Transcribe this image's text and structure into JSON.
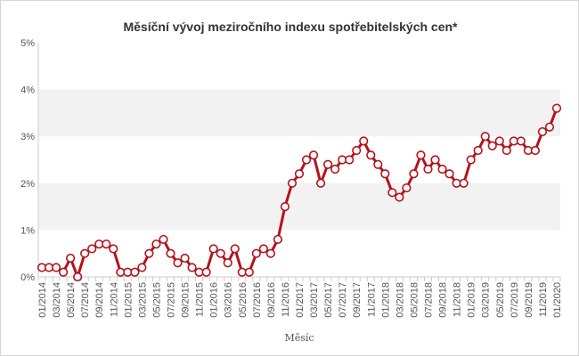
{
  "chart_data": {
    "type": "line",
    "title": "Měsíční vývoj meziročního indexu spotřebitelských cen*",
    "xlabel": "Měsíc",
    "ylabel": "",
    "ylim": [
      0,
      5
    ],
    "y_ticks": [
      "0%",
      "1%",
      "2%",
      "3%",
      "4%",
      "5%"
    ],
    "x_tick_labels": [
      "01/2014",
      "03/2014",
      "05/2014",
      "07/2014",
      "09/2014",
      "11/2014",
      "01/2015",
      "03/2015",
      "05/2015",
      "07/2015",
      "09/2015",
      "11/2015",
      "01/2016",
      "03/2016",
      "05/2016",
      "07/2016",
      "09/2016",
      "11/2016",
      "01/2017",
      "03/2017",
      "05/2017",
      "07/2017",
      "09/2017",
      "11/2017",
      "01/2018",
      "03/2018",
      "05/2018",
      "07/2018",
      "09/2018",
      "11/2018",
      "01/2019",
      "03/2019",
      "05/2019",
      "07/2019",
      "09/2019",
      "11/2019",
      "01/2020"
    ],
    "x": [
      "01/2014",
      "02/2014",
      "03/2014",
      "04/2014",
      "05/2014",
      "06/2014",
      "07/2014",
      "08/2014",
      "09/2014",
      "10/2014",
      "11/2014",
      "12/2014",
      "01/2015",
      "02/2015",
      "03/2015",
      "04/2015",
      "05/2015",
      "06/2015",
      "07/2015",
      "08/2015",
      "09/2015",
      "10/2015",
      "11/2015",
      "12/2015",
      "01/2016",
      "02/2016",
      "03/2016",
      "04/2016",
      "05/2016",
      "06/2016",
      "07/2016",
      "08/2016",
      "09/2016",
      "10/2016",
      "11/2016",
      "12/2016",
      "01/2017",
      "02/2017",
      "03/2017",
      "04/2017",
      "05/2017",
      "06/2017",
      "07/2017",
      "08/2017",
      "09/2017",
      "10/2017",
      "11/2017",
      "12/2017",
      "01/2018",
      "02/2018",
      "03/2018",
      "04/2018",
      "05/2018",
      "06/2018",
      "07/2018",
      "08/2018",
      "09/2018",
      "10/2018",
      "11/2018",
      "12/2018",
      "01/2019",
      "02/2019",
      "03/2019",
      "04/2019",
      "05/2019",
      "06/2019",
      "07/2019",
      "08/2019",
      "09/2019",
      "10/2019",
      "11/2019",
      "12/2019",
      "01/2020"
    ],
    "series": [
      {
        "values": [
          0.2,
          0.2,
          0.2,
          0.1,
          0.4,
          0.0,
          0.5,
          0.6,
          0.7,
          0.7,
          0.6,
          0.1,
          0.1,
          0.1,
          0.2,
          0.5,
          0.7,
          0.8,
          0.5,
          0.3,
          0.4,
          0.2,
          0.1,
          0.1,
          0.6,
          0.5,
          0.3,
          0.6,
          0.1,
          0.1,
          0.5,
          0.6,
          0.5,
          0.8,
          1.5,
          2.0,
          2.2,
          2.5,
          2.6,
          2.0,
          2.4,
          2.3,
          2.5,
          2.5,
          2.7,
          2.9,
          2.6,
          2.4,
          2.2,
          1.8,
          1.7,
          1.9,
          2.2,
          2.6,
          2.3,
          2.5,
          2.3,
          2.2,
          2.0,
          2.0,
          2.5,
          2.7,
          3.0,
          2.8,
          2.9,
          2.7,
          2.9,
          2.9,
          2.7,
          2.7,
          3.1,
          3.2,
          3.6
        ],
        "color": "#b5121b"
      }
    ],
    "grid": "alternating horizontal bands",
    "legend": "none"
  },
  "colors": {
    "line": "#b5121b",
    "marker_fill": "#ffffff",
    "band": "#f2f2f2",
    "text": "#555555",
    "title": "#333333"
  }
}
